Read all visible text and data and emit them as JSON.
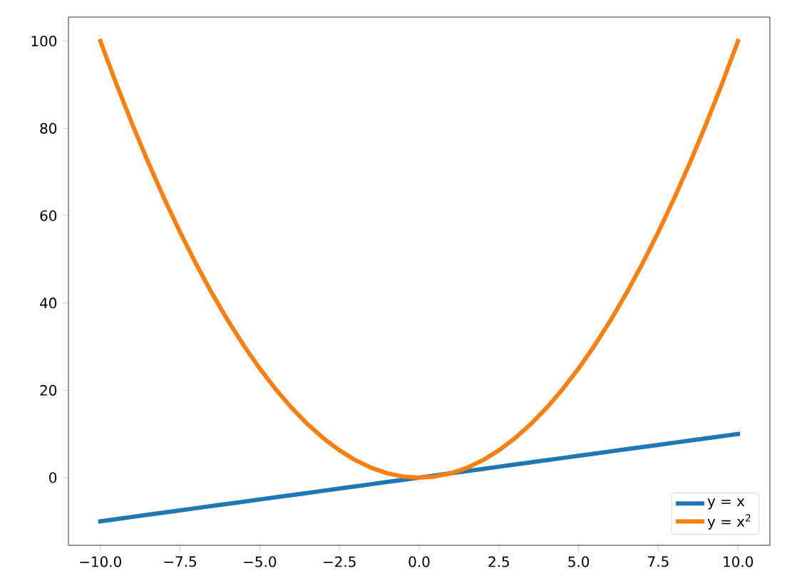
{
  "chart_data": {
    "type": "line",
    "x": [
      -10,
      -9.5,
      -9,
      -8.5,
      -8,
      -7.5,
      -7,
      -6.5,
      -6,
      -5.5,
      -5,
      -4.5,
      -4,
      -3.5,
      -3,
      -2.5,
      -2,
      -1.5,
      -1,
      -0.5,
      0,
      0.5,
      1,
      1.5,
      2,
      2.5,
      3,
      3.5,
      4,
      4.5,
      5,
      5.5,
      6,
      6.5,
      7,
      7.5,
      8,
      8.5,
      9,
      9.5,
      10
    ],
    "series": [
      {
        "name": "y = x",
        "color": "#1f77b4",
        "values": [
          -10,
          -9.5,
          -9,
          -8.5,
          -8,
          -7.5,
          -7,
          -6.5,
          -6,
          -5.5,
          -5,
          -4.5,
          -4,
          -3.5,
          -3,
          -2.5,
          -2,
          -1.5,
          -1,
          -0.5,
          0,
          0.5,
          1,
          1.5,
          2,
          2.5,
          3,
          3.5,
          4,
          4.5,
          5,
          5.5,
          6,
          6.5,
          7,
          7.5,
          8,
          8.5,
          9,
          9.5,
          10
        ]
      },
      {
        "name": "y = x$^{2}$",
        "color": "#ff7f0e",
        "values": [
          100,
          90.25,
          81,
          72.25,
          64,
          56.25,
          49,
          42.25,
          36,
          30.25,
          25,
          20.25,
          16,
          12.25,
          9,
          6.25,
          4,
          2.25,
          1,
          0.25,
          0,
          0.25,
          1,
          2.25,
          4,
          6.25,
          9,
          12.25,
          16,
          20.25,
          25,
          30.25,
          36,
          42.25,
          49,
          56.25,
          64,
          72.25,
          81,
          90.25,
          100
        ]
      }
    ],
    "xlim": [
      -11,
      11
    ],
    "ylim": [
      -15.5,
      105.5
    ],
    "xticks": [
      {
        "value": -10,
        "label": "−10.0"
      },
      {
        "value": -7.5,
        "label": "−7.5"
      },
      {
        "value": -5,
        "label": "−5.0"
      },
      {
        "value": -2.5,
        "label": "−2.5"
      },
      {
        "value": 0,
        "label": "0.0"
      },
      {
        "value": 2.5,
        "label": "2.5"
      },
      {
        "value": 5,
        "label": "5.0"
      },
      {
        "value": 7.5,
        "label": "7.5"
      },
      {
        "value": 10,
        "label": "10.0"
      }
    ],
    "yticks": [
      0,
      20,
      40,
      60,
      80,
      100
    ],
    "grid": false,
    "legend": "bottom right",
    "marker": "none",
    "line_style": "solid"
  }
}
